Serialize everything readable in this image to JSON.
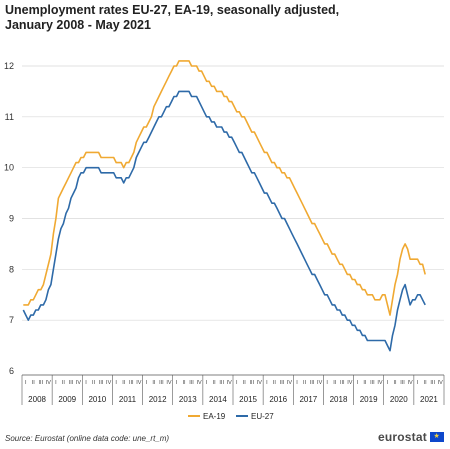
{
  "title": "Unemployment rates EU-27, EA-19, seasonally adjusted, January 2008 - May 2021",
  "source": "Source: Eurostat (online data code: une_rt_m)",
  "logo_text": "eurostat",
  "chart_data": {
    "type": "line",
    "title": "Unemployment rates EU-27, EA-19, seasonally adjusted, January 2008 - May 2021",
    "ylim": [
      6,
      12
    ],
    "yticks": [
      6,
      7,
      8,
      9,
      10,
      11,
      12
    ],
    "quarter_labels": [
      "I",
      "II",
      "III",
      "IV"
    ],
    "years": [
      "2008",
      "2009",
      "2010",
      "2011",
      "2012",
      "2013",
      "2014",
      "2015",
      "2016",
      "2017",
      "2018",
      "2019",
      "2020",
      "2021"
    ],
    "grid": "horizontal",
    "legend_position": "bottom",
    "series": [
      {
        "name": "EA-19",
        "color": "#f0a932",
        "keypoints": [
          [
            "2008-01",
            7.3
          ],
          [
            "2008-03",
            7.3
          ],
          [
            "2008-06",
            7.5
          ],
          [
            "2008-09",
            7.7
          ],
          [
            "2008-12",
            8.3
          ],
          [
            "2009-03",
            9.4
          ],
          [
            "2009-06",
            9.7
          ],
          [
            "2009-09",
            10.0
          ],
          [
            "2009-12",
            10.2
          ],
          [
            "2010-03",
            10.3
          ],
          [
            "2010-06",
            10.3
          ],
          [
            "2010-09",
            10.2
          ],
          [
            "2010-12",
            10.2
          ],
          [
            "2011-03",
            10.1
          ],
          [
            "2011-05",
            10.0
          ],
          [
            "2011-08",
            10.2
          ],
          [
            "2011-11",
            10.6
          ],
          [
            "2012-03",
            10.9
          ],
          [
            "2012-06",
            11.3
          ],
          [
            "2012-09",
            11.6
          ],
          [
            "2012-12",
            11.9
          ],
          [
            "2013-03",
            12.1
          ],
          [
            "2013-06",
            12.1
          ],
          [
            "2013-09",
            12.0
          ],
          [
            "2013-11",
            11.9
          ],
          [
            "2014-01",
            11.8
          ],
          [
            "2014-04",
            11.6
          ],
          [
            "2014-07",
            11.5
          ],
          [
            "2014-10",
            11.4
          ],
          [
            "2015-01",
            11.2
          ],
          [
            "2015-06",
            10.9
          ],
          [
            "2015-12",
            10.4
          ],
          [
            "2016-06",
            10.0
          ],
          [
            "2016-12",
            9.7
          ],
          [
            "2017-06",
            9.1
          ],
          [
            "2017-12",
            8.6
          ],
          [
            "2018-06",
            8.2
          ],
          [
            "2018-12",
            7.8
          ],
          [
            "2019-06",
            7.5
          ],
          [
            "2019-10",
            7.4
          ],
          [
            "2020-01",
            7.5
          ],
          [
            "2020-03",
            7.1
          ],
          [
            "2020-07",
            8.2
          ],
          [
            "2020-09",
            8.5
          ],
          [
            "2020-11",
            8.2
          ],
          [
            "2021-02",
            8.2
          ],
          [
            "2021-04",
            8.1
          ],
          [
            "2021-05",
            7.9
          ]
        ]
      },
      {
        "name": "EU-27",
        "color": "#2e6aa8",
        "keypoints": [
          [
            "2008-01",
            7.2
          ],
          [
            "2008-03",
            7.0
          ],
          [
            "2008-06",
            7.2
          ],
          [
            "2008-09",
            7.3
          ],
          [
            "2008-12",
            7.7
          ],
          [
            "2009-03",
            8.6
          ],
          [
            "2009-06",
            9.1
          ],
          [
            "2009-09",
            9.5
          ],
          [
            "2009-12",
            9.9
          ],
          [
            "2010-03",
            10.0
          ],
          [
            "2010-06",
            10.0
          ],
          [
            "2010-09",
            9.9
          ],
          [
            "2010-12",
            9.9
          ],
          [
            "2011-03",
            9.8
          ],
          [
            "2011-05",
            9.7
          ],
          [
            "2011-08",
            9.9
          ],
          [
            "2011-11",
            10.3
          ],
          [
            "2012-03",
            10.6
          ],
          [
            "2012-06",
            10.9
          ],
          [
            "2012-09",
            11.1
          ],
          [
            "2012-12",
            11.3
          ],
          [
            "2013-03",
            11.5
          ],
          [
            "2013-06",
            11.5
          ],
          [
            "2013-09",
            11.4
          ],
          [
            "2013-11",
            11.3
          ],
          [
            "2014-01",
            11.1
          ],
          [
            "2014-04",
            10.9
          ],
          [
            "2014-07",
            10.8
          ],
          [
            "2014-10",
            10.7
          ],
          [
            "2015-01",
            10.5
          ],
          [
            "2015-06",
            10.1
          ],
          [
            "2015-12",
            9.6
          ],
          [
            "2016-06",
            9.2
          ],
          [
            "2016-12",
            8.7
          ],
          [
            "2017-06",
            8.1
          ],
          [
            "2017-12",
            7.6
          ],
          [
            "2018-06",
            7.2
          ],
          [
            "2018-12",
            6.9
          ],
          [
            "2019-06",
            6.6
          ],
          [
            "2019-10",
            6.6
          ],
          [
            "2020-01",
            6.6
          ],
          [
            "2020-03",
            6.4
          ],
          [
            "2020-07",
            7.4
          ],
          [
            "2020-09",
            7.7
          ],
          [
            "2020-11",
            7.3
          ],
          [
            "2021-02",
            7.5
          ],
          [
            "2021-04",
            7.4
          ],
          [
            "2021-05",
            7.3
          ]
        ]
      }
    ]
  }
}
